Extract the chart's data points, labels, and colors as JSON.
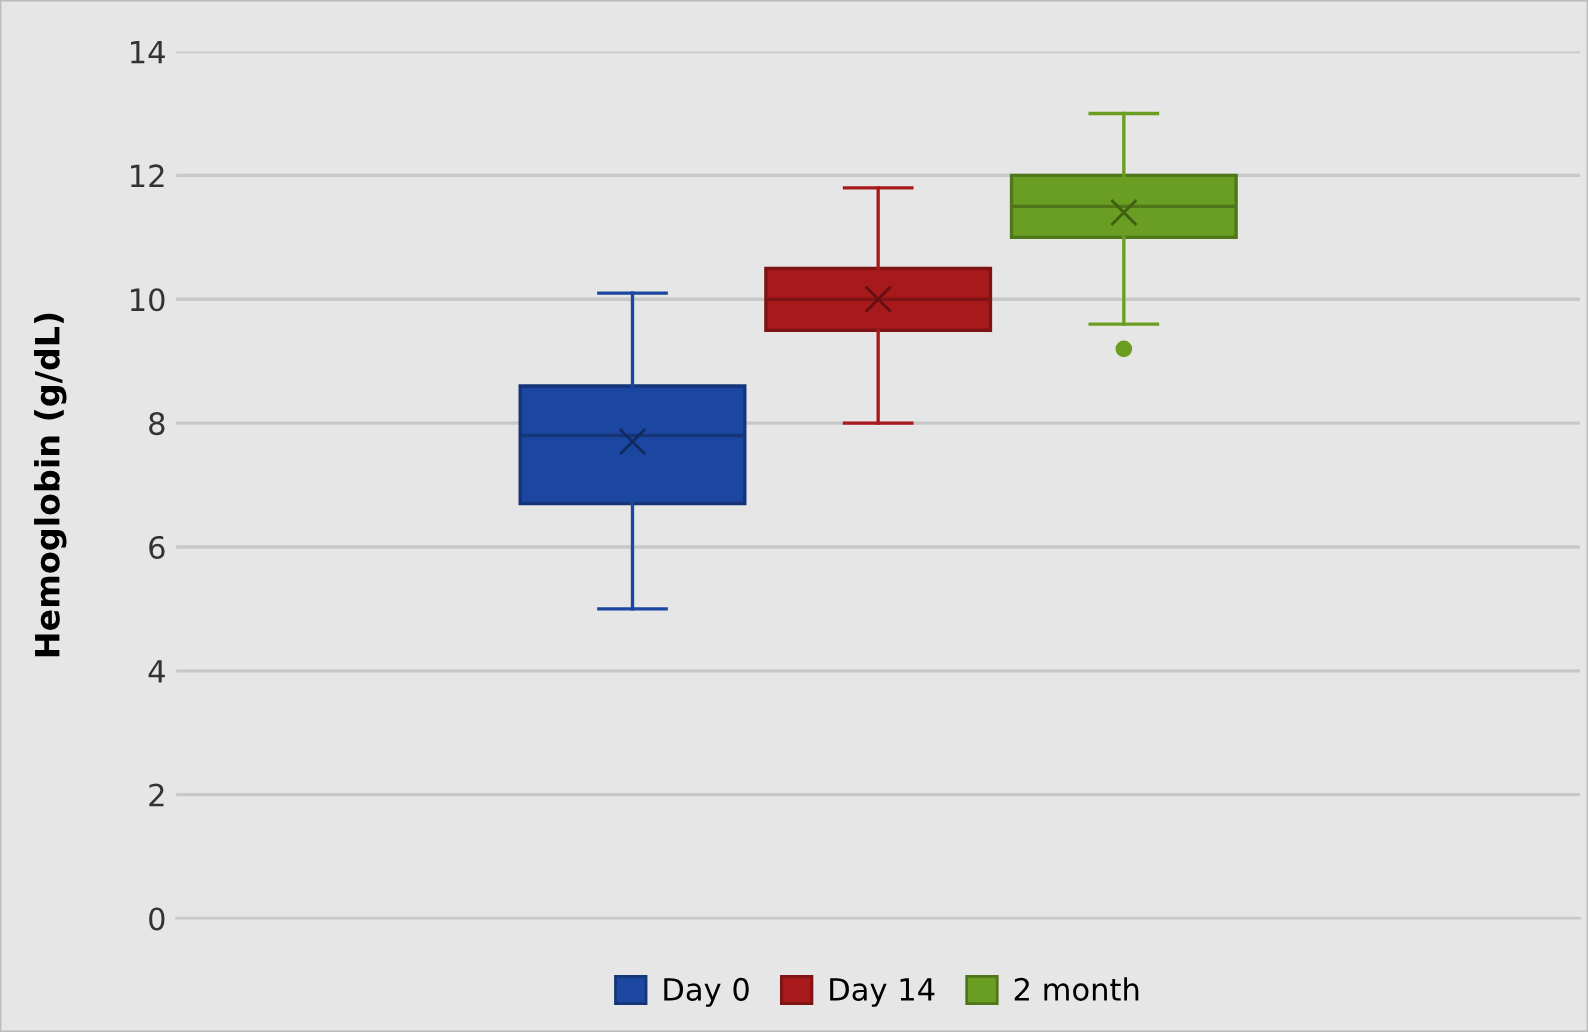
{
  "chart_data": {
    "type": "box",
    "ylabel": "Hemoglobin (g/dL)",
    "categories": [
      null
    ],
    "ylim": [
      0,
      14
    ],
    "yticks": [
      0,
      2,
      4,
      6,
      8,
      10,
      12,
      14
    ],
    "grid": "y",
    "legend": "bottom",
    "tick_labels": "y",
    "marker": "cross",
    "series": [
      {
        "name": "Day 0",
        "color": "#1c47a0",
        "boxes": [
          {
            "low": 5.0,
            "q1": 6.7,
            "median": 7.8,
            "q3": 8.6,
            "high": 10.1,
            "mean": 7.7
          }
        ]
      },
      {
        "name": "Day 14",
        "color": "#a8191c",
        "boxes": [
          {
            "low": 8.0,
            "q1": 9.5,
            "median": 10.0,
            "q3": 10.5,
            "high": 11.8,
            "mean": 10.0
          }
        ]
      },
      {
        "name": "2 month",
        "color": "#6a9e22",
        "boxes": [
          {
            "low": 9.6,
            "q1": 11.0,
            "median": 11.5,
            "q3": 12.0,
            "high": 13.0,
            "mean": 11.4,
            "outliers": [
              9.2
            ]
          }
        ]
      }
    ]
  }
}
